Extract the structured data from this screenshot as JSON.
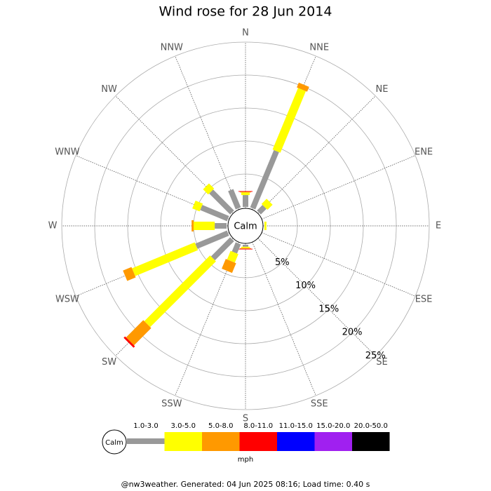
{
  "chart_data": {
    "type": "windrose",
    "title": "Wind rose for 28 Jun 2014",
    "center_label": "Calm",
    "categories": [
      "N",
      "NNE",
      "NE",
      "ENE",
      "E",
      "ESE",
      "SE",
      "SSE",
      "S",
      "SSW",
      "SW",
      "WSW",
      "W",
      "WNW",
      "NW",
      "NNW"
    ],
    "series": [
      {
        "name": "1.0-3.0",
        "color": "#999999",
        "values": [
          1.8,
          9.4,
          1.2,
          0,
          0,
          0,
          0,
          0,
          0.3,
          1.5,
          4.1,
          5.2,
          1.8,
          4.4,
          4.5,
          3.0
        ]
      },
      {
        "name": "3.0-5.0",
        "color": "#ffff00",
        "values": [
          0.4,
          10.1,
          1.1,
          0,
          0.3,
          0,
          0,
          0,
          0.2,
          1.4,
          14.1,
          10.3,
          3.2,
          1.2,
          1.1,
          0
        ]
      },
      {
        "name": "5.0-8.0",
        "color": "#ff9900",
        "values": [
          0.1,
          0.8,
          0,
          0,
          0,
          0,
          0,
          0,
          0.1,
          1.6,
          3.7,
          1.4,
          0.3,
          0,
          0,
          0
        ]
      },
      {
        "name": "8.0-11.0",
        "color": "#ff0000",
        "values": [
          0.1,
          0,
          0,
          0,
          0,
          0,
          0,
          0,
          0.1,
          0,
          0.3,
          0,
          0,
          0,
          0,
          0
        ]
      },
      {
        "name": "11.0-15.0",
        "color": "#0000ff",
        "values": [
          0,
          0,
          0,
          0,
          0,
          0,
          0,
          0,
          0,
          0,
          0,
          0,
          0,
          0,
          0,
          0
        ]
      },
      {
        "name": "15.0-20.0",
        "color": "#a020f0",
        "values": [
          0,
          0,
          0,
          0,
          0,
          0,
          0,
          0,
          0,
          0,
          0,
          0,
          0,
          0,
          0,
          0
        ]
      },
      {
        "name": "20.0-50.0",
        "color": "#000000",
        "values": [
          0,
          0,
          0,
          0,
          0,
          0,
          0,
          0,
          0,
          0,
          0,
          0,
          0,
          0,
          0,
          0
        ]
      }
    ],
    "ylim": [
      0,
      25
    ],
    "yticks": [
      {
        "value": 5,
        "label": "5%"
      },
      {
        "value": 10,
        "label": "10%"
      },
      {
        "value": 15,
        "label": "15%"
      },
      {
        "value": 20,
        "label": "20%"
      },
      {
        "value": 25,
        "label": "25%"
      }
    ],
    "legend_title": "mph",
    "footer": "@nw3weather. Generated: 04 Jun 2025 08:16; Load time: 0.40 s"
  }
}
